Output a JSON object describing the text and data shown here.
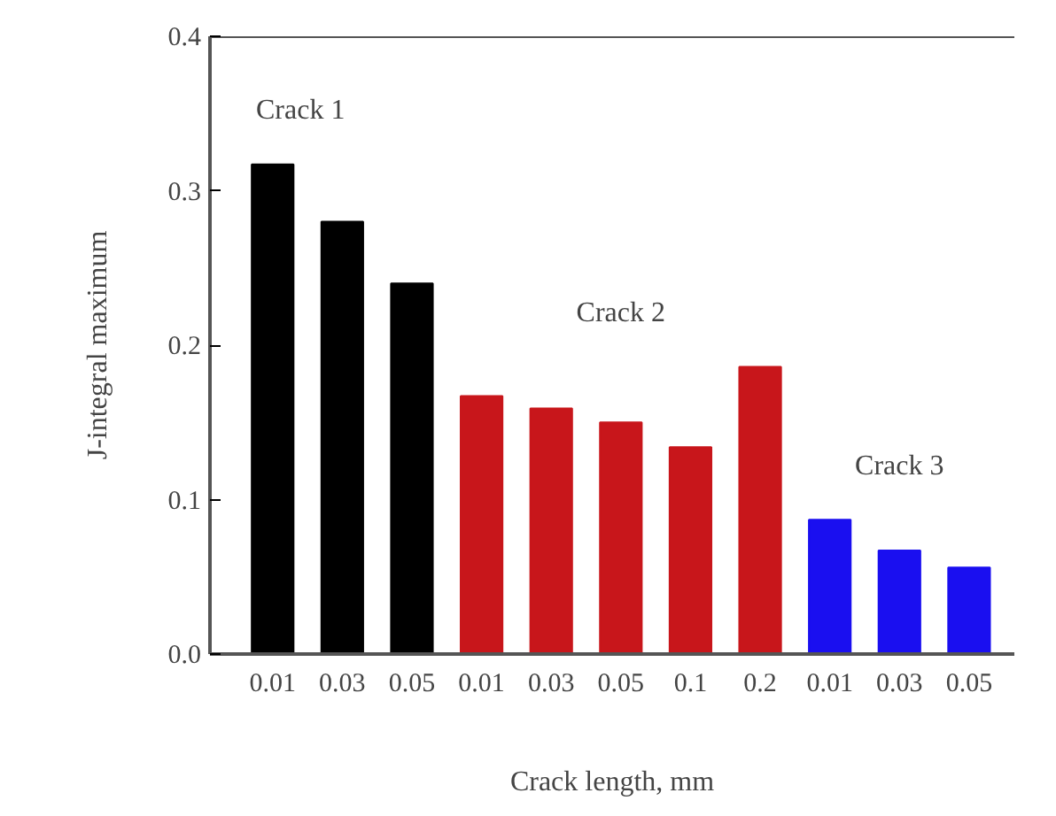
{
  "chart_data": {
    "type": "bar",
    "xlabel": "Crack length, mm",
    "ylabel": "J-integral maximum",
    "categories": [
      "0.01",
      "0.03",
      "0.05",
      "0.01",
      "0.03",
      "0.05",
      "0.1",
      "0.2",
      "0.01",
      "0.03",
      "0.05"
    ],
    "series": [
      {
        "name": "Crack 1",
        "color": "#000000",
        "values": [
          0.317,
          0.28,
          0.24,
          null,
          null,
          null,
          null,
          null,
          null,
          null,
          null
        ]
      },
      {
        "name": "Crack 2",
        "color": "#c8161b",
        "values": [
          null,
          null,
          null,
          0.167,
          0.159,
          0.15,
          0.134,
          0.186,
          null,
          null,
          null
        ]
      },
      {
        "name": "Crack 3",
        "color": "#1a0ff0",
        "values": [
          null,
          null,
          null,
          null,
          null,
          null,
          null,
          null,
          0.087,
          0.067,
          0.056
        ]
      }
    ],
    "ylim": [
      0,
      0.4
    ],
    "yticks": [
      {
        "value": 0,
        "label": "0.0"
      },
      {
        "value": 0.1,
        "label": "0.1"
      },
      {
        "value": 0.2,
        "label": "0.2"
      },
      {
        "value": 0.3,
        "label": "0.3"
      },
      {
        "value": 0.4,
        "label": "0.4"
      }
    ],
    "grid": false
  }
}
